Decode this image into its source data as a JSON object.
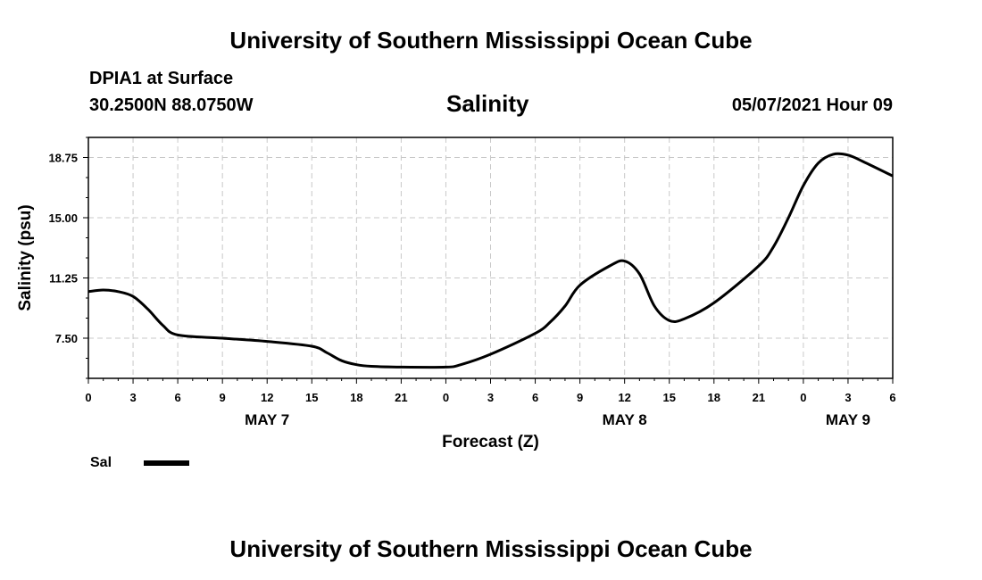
{
  "header": {
    "title": "University of Southern Mississippi Ocean Cube",
    "station": "DPIA1 at Surface",
    "coordinates": "30.2500N  88.0750W",
    "datetime": "05/07/2021 Hour 09"
  },
  "footer": {
    "title": "University of Southern Mississippi Ocean Cube"
  },
  "legend": {
    "label": "Sal",
    "color": "#000000"
  },
  "chart_data": {
    "type": "line",
    "title": "Salinity",
    "xlabel": "Forecast (Z)",
    "ylabel": "Salinity (psu)",
    "xlim": [
      0,
      54
    ],
    "ylim": [
      5.0,
      20.0
    ],
    "grid": true,
    "x_ticks": [
      0,
      3,
      6,
      9,
      12,
      15,
      18,
      21,
      24,
      27,
      30,
      33,
      36,
      39,
      42,
      45,
      48,
      51,
      54
    ],
    "x_tick_labels": [
      "0",
      "3",
      "6",
      "9",
      "12",
      "15",
      "18",
      "21",
      "0",
      "3",
      "6",
      "9",
      "12",
      "15",
      "18",
      "21",
      "0",
      "3",
      "6"
    ],
    "y_ticks": [
      7.5,
      11.25,
      15.0,
      18.75
    ],
    "y_tick_labels": [
      "7.50",
      "11.25",
      "15.00",
      "18.75"
    ],
    "day_labels": [
      {
        "x": 12,
        "label": "MAY 7"
      },
      {
        "x": 36,
        "label": "MAY 8"
      },
      {
        "x": 51,
        "label": "MAY 9"
      }
    ],
    "series": [
      {
        "name": "Sal",
        "color": "#000000",
        "x": [
          0,
          1,
          2,
          3,
          4,
          5,
          6,
          9,
          12,
          15,
          16,
          17,
          18,
          19,
          21,
          24,
          25,
          27,
          30,
          31,
          32,
          33,
          35,
          36,
          37,
          38,
          39,
          40,
          42,
          45,
          46,
          47,
          48,
          49,
          50,
          51,
          52,
          54
        ],
        "values": [
          10.4,
          10.5,
          10.4,
          10.1,
          9.3,
          8.3,
          7.7,
          7.5,
          7.3,
          7.0,
          6.6,
          6.1,
          5.85,
          5.75,
          5.7,
          5.7,
          5.85,
          6.5,
          7.8,
          8.5,
          9.5,
          10.8,
          12.0,
          12.3,
          11.5,
          9.5,
          8.6,
          8.7,
          9.7,
          12.0,
          13.2,
          15.0,
          17.0,
          18.4,
          18.95,
          18.9,
          18.5,
          17.6
        ]
      }
    ]
  }
}
